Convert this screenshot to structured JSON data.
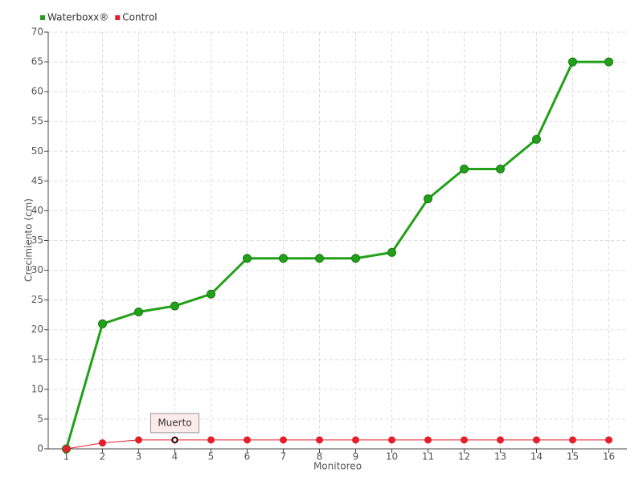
{
  "chart_data": {
    "type": "line",
    "y_label": "Crecimiento (cm)",
    "x_label": "Monitoreo",
    "categories": [
      "1",
      "2",
      "3",
      "4",
      "5",
      "6",
      "7",
      "8",
      "9",
      "10",
      "11",
      "12",
      "13",
      "14",
      "15",
      "16"
    ],
    "series": [
      {
        "name": "Waterboxx®",
        "color": "#22a019",
        "values": [
          0,
          21,
          23,
          24,
          26,
          32,
          32,
          32,
          32,
          33,
          42,
          47,
          47,
          52,
          65,
          65
        ]
      },
      {
        "name": "Control",
        "color": "#e41f2b",
        "values": [
          0,
          1,
          1.5,
          1.5,
          1.5,
          1.5,
          1.5,
          1.5,
          1.5,
          1.5,
          1.5,
          1.5,
          1.5,
          1.5,
          1.5,
          1.5
        ]
      }
    ],
    "annotation": {
      "text": "Muerto",
      "series": 1,
      "category": "4"
    },
    "ylim": [
      0,
      70
    ],
    "yticks": [
      0,
      5,
      10,
      15,
      20,
      25,
      30,
      35,
      40,
      45,
      50,
      55,
      60,
      65,
      70
    ],
    "grid": true,
    "legend": "top-left"
  }
}
